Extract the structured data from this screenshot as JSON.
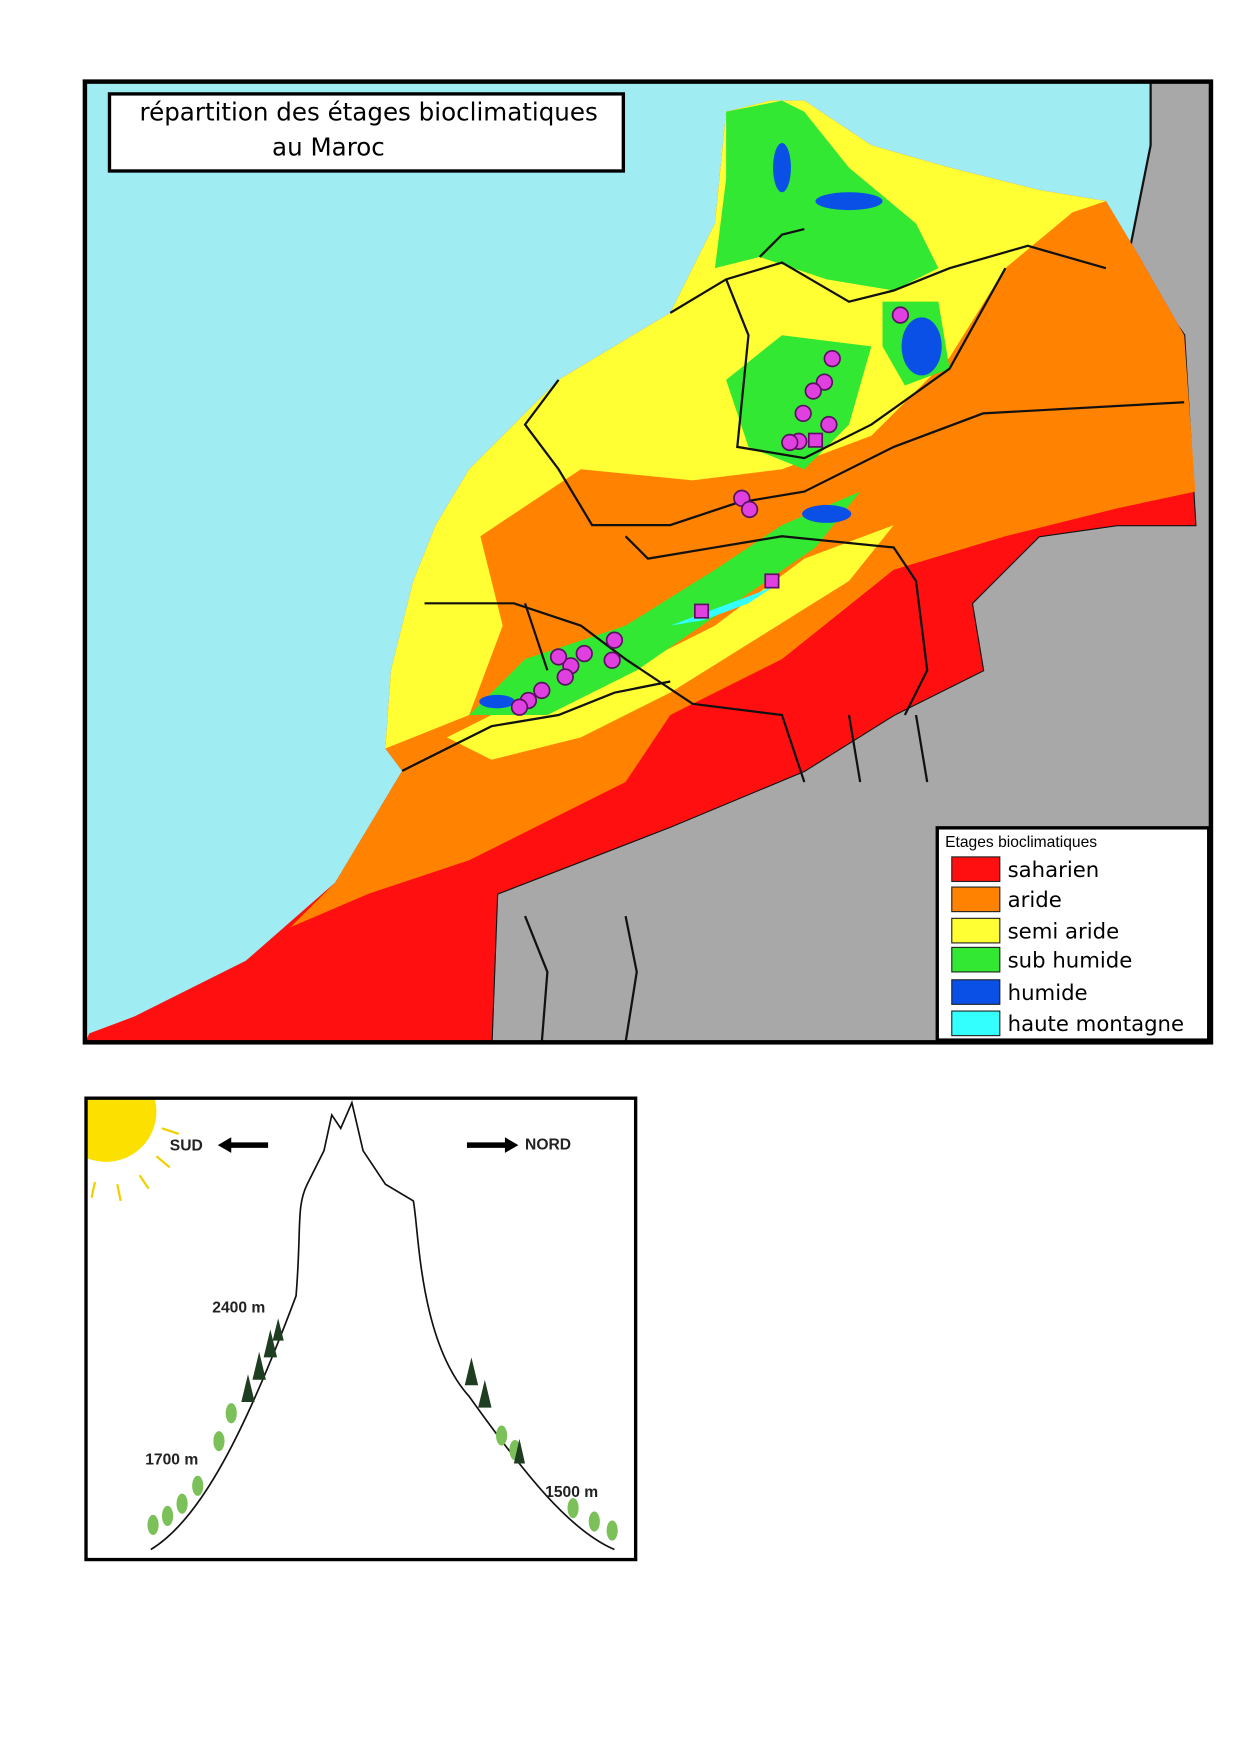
{
  "map": {
    "title": [
      "répartition des étages bioclimatiques",
      "au Maroc"
    ],
    "legend": {
      "title": "Etages bioclimatiques",
      "items": [
        {
          "label": "saharien",
          "color": "#ff0f0f"
        },
        {
          "label": "aride",
          "color": "#ff8200"
        },
        {
          "label": "semi aride",
          "color": "#ffff33"
        },
        {
          "label": "sub humide",
          "color": "#33e833"
        },
        {
          "label": "humide",
          "color": "#0a50e6"
        },
        {
          "label": "haute montagne",
          "color": "#33ffff"
        }
      ]
    }
  },
  "diagram": {
    "south": "SUD",
    "north": "NORD",
    "labels": [
      "2400 m",
      "1700 m",
      "1500 m"
    ]
  }
}
